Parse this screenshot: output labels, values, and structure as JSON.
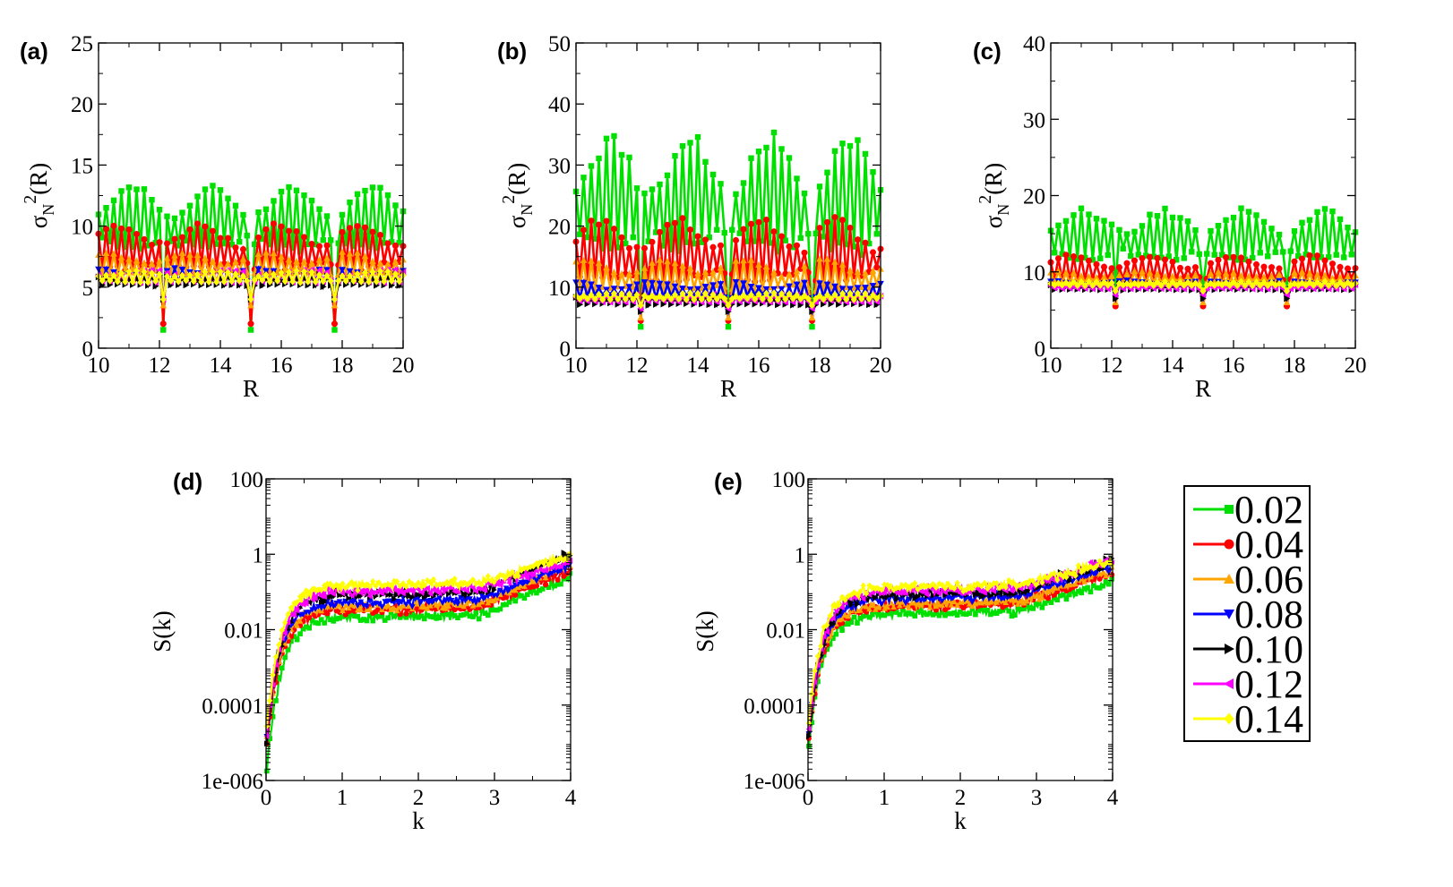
{
  "chart_data": [
    {
      "panel": "(a)",
      "type": "line",
      "xlabel": "R",
      "ylabel_base": "σ",
      "ylabel_sub": "N",
      "ylabel_sup": "2",
      "ylabel_tail": "(R)",
      "xlim": [
        10,
        20
      ],
      "ylim": [
        0,
        25
      ],
      "xticks": [
        "10",
        "12",
        "14",
        "16",
        "18",
        "20"
      ],
      "yticks": [
        "0",
        "5",
        "10",
        "15",
        "20",
        "25"
      ],
      "series_levels": [
        {
          "name": "0.02",
          "mean": 9.2,
          "amp": 4.0,
          "min": 1.5,
          "max": 14.0,
          "dip": 7.5
        },
        {
          "name": "0.04",
          "mean": 7.2,
          "amp": 2.9,
          "min": 2.0,
          "max": 10.2,
          "dip": 5.0
        },
        {
          "name": "0.06",
          "mean": 6.4,
          "amp": 1.4,
          "min": 3.5,
          "max": 8.0,
          "dip": 2.5
        },
        {
          "name": "0.08",
          "mean": 5.6,
          "amp": 0.9,
          "min": 4.0,
          "max": 6.6,
          "dip": 1.6
        },
        {
          "name": "0.10",
          "mean": 5.3,
          "amp": 0.7,
          "min": 4.0,
          "max": 6.2,
          "dip": 1.3
        },
        {
          "name": "0.12",
          "mean": 5.6,
          "amp": 0.8,
          "min": 4.0,
          "max": 6.5,
          "dip": 1.3
        },
        {
          "name": "0.14",
          "mean": 5.6,
          "amp": 0.7,
          "min": 4.0,
          "max": 6.4,
          "dip": 1.2
        }
      ]
    },
    {
      "panel": "(b)",
      "type": "line",
      "xlabel": "R",
      "ylabel_base": "σ",
      "ylabel_sub": "N",
      "ylabel_sup": "2",
      "ylabel_tail": "(R)",
      "xlim": [
        10,
        20
      ],
      "ylim": [
        0,
        50
      ],
      "xticks": [
        "10",
        "12",
        "14",
        "16",
        "18",
        "20"
      ],
      "yticks": [
        "0",
        "10",
        "20",
        "30",
        "40",
        "50"
      ],
      "series_levels": [
        {
          "name": "0.02",
          "mean": 20.0,
          "amp": 14.0,
          "min": 3.5,
          "max": 36.0,
          "dip": 6.0
        },
        {
          "name": "0.04",
          "mean": 13.0,
          "amp": 8.0,
          "min": 4.5,
          "max": 22.5,
          "dip": 4.0
        },
        {
          "name": "0.06",
          "mean": 10.5,
          "amp": 4.0,
          "min": 5.0,
          "max": 15.5,
          "dip": 2.0
        },
        {
          "name": "0.08",
          "mean": 8.8,
          "amp": 2.0,
          "min": 6.0,
          "max": 11.5,
          "dip": 1.5
        },
        {
          "name": "0.10",
          "mean": 7.4,
          "amp": 1.2,
          "min": 6.0,
          "max": 9.0,
          "dip": 0.8
        },
        {
          "name": "0.12",
          "mean": 7.8,
          "amp": 1.0,
          "min": 6.5,
          "max": 9.5,
          "dip": 0.6
        },
        {
          "name": "0.14",
          "mean": 8.2,
          "amp": 0.8,
          "min": 7.0,
          "max": 9.5,
          "dip": 0.5
        }
      ]
    },
    {
      "panel": "(c)",
      "type": "line",
      "xlabel": "R",
      "ylabel_base": "σ",
      "ylabel_sub": "N",
      "ylabel_sup": "2",
      "ylabel_tail": "(R)",
      "xlim": [
        10,
        20
      ],
      "ylim": [
        0,
        40
      ],
      "xticks": [
        "10",
        "12",
        "14",
        "16",
        "18",
        "20"
      ],
      "yticks": [
        "0",
        "10",
        "20",
        "30",
        "40"
      ],
      "series_levels": [
        {
          "name": "0.02",
          "mean": 13.0,
          "amp": 5.0,
          "min": 8.0,
          "max": 20.3,
          "dip": 3.0
        },
        {
          "name": "0.04",
          "mean": 9.5,
          "amp": 2.5,
          "min": 5.5,
          "max": 14.0,
          "dip": 2.5
        },
        {
          "name": "0.06",
          "mean": 8.8,
          "amp": 1.2,
          "min": 6.0,
          "max": 11.0,
          "dip": 1.0
        },
        {
          "name": "0.08",
          "mean": 8.0,
          "amp": 0.8,
          "min": 6.5,
          "max": 9.5,
          "dip": 0.8
        },
        {
          "name": "0.10",
          "mean": 7.8,
          "amp": 0.6,
          "min": 6.5,
          "max": 9.0,
          "dip": 0.6
        },
        {
          "name": "0.12",
          "mean": 7.9,
          "amp": 0.5,
          "min": 7.0,
          "max": 9.0,
          "dip": 0.4
        },
        {
          "name": "0.14",
          "mean": 8.3,
          "amp": 0.4,
          "min": 7.5,
          "max": 9.2,
          "dip": 0.3
        }
      ]
    },
    {
      "panel": "(d)",
      "type": "line",
      "yscale": "log",
      "xlabel": "k",
      "ylabel": "S(k)",
      "xlim": [
        0,
        4
      ],
      "ylim_exp": [
        -6,
        2
      ],
      "xticks": [
        "0",
        "1",
        "2",
        "3",
        "4"
      ],
      "yticks": [
        {
          "label": "1e-006",
          "exp": -6
        },
        {
          "label": "0.0001",
          "exp": -4
        },
        {
          "label": "0.01",
          "exp": -2
        },
        {
          "label": "1",
          "exp": 0
        },
        {
          "label": "100",
          "exp": 2
        }
      ],
      "series_levels": [
        {
          "name": "0.02",
          "start_log": -6.0,
          "plateau_log": -1.7,
          "end_log": -0.6
        },
        {
          "name": "0.04",
          "start_log": -5.3,
          "plateau_log": -1.5,
          "end_log": -0.4
        },
        {
          "name": "0.06",
          "start_log": -5.1,
          "plateau_log": -1.4,
          "end_log": -0.2
        },
        {
          "name": "0.08",
          "start_log": -5.0,
          "plateau_log": -1.3,
          "end_log": -0.3
        },
        {
          "name": "0.10",
          "start_log": -5.2,
          "plateau_log": -1.1,
          "end_log": 0.0
        },
        {
          "name": "0.12",
          "start_log": -5.0,
          "plateau_log": -1.0,
          "end_log": -0.2
        },
        {
          "name": "0.14",
          "start_log": -4.8,
          "plateau_log": -0.85,
          "end_log": -0.05
        }
      ]
    },
    {
      "panel": "(e)",
      "type": "line",
      "yscale": "log",
      "xlabel": "k",
      "ylabel": "S(k)",
      "xlim": [
        0,
        4
      ],
      "ylim_exp": [
        -6,
        2
      ],
      "xticks": [
        "0",
        "1",
        "2",
        "3",
        "4"
      ],
      "yticks": [
        {
          "label": "1e-006",
          "exp": -6
        },
        {
          "label": "0.0001",
          "exp": -4
        },
        {
          "label": "0.01",
          "exp": -2
        },
        {
          "label": "1",
          "exp": 0
        },
        {
          "label": "100",
          "exp": 2
        }
      ],
      "series_levels": [
        {
          "name": "0.02",
          "start_log": -5.3,
          "plateau_log": -1.6,
          "end_log": -0.7
        },
        {
          "name": "0.04",
          "start_log": -5.1,
          "plateau_log": -1.4,
          "end_log": -0.5
        },
        {
          "name": "0.06",
          "start_log": -5.0,
          "plateau_log": -1.35,
          "end_log": -0.4
        },
        {
          "name": "0.08",
          "start_log": -5.0,
          "plateau_log": -1.2,
          "end_log": -0.3
        },
        {
          "name": "0.10",
          "start_log": -5.1,
          "plateau_log": -1.1,
          "end_log": -0.15
        },
        {
          "name": "0.12",
          "start_log": -4.9,
          "plateau_log": -1.0,
          "end_log": -0.15
        },
        {
          "name": "0.14",
          "start_log": -4.6,
          "plateau_log": -0.9,
          "end_log": -0.2
        }
      ]
    }
  ],
  "legend": {
    "items": [
      {
        "label": "0.02",
        "color": "#00e000",
        "marker": "square"
      },
      {
        "label": "0.04",
        "color": "#ff0000",
        "marker": "circle"
      },
      {
        "label": "0.06",
        "color": "#ffa500",
        "marker": "triangle-up"
      },
      {
        "label": "0.08",
        "color": "#0000ff",
        "marker": "triangle-down"
      },
      {
        "label": "0.10",
        "color": "#000000",
        "marker": "triangle-right"
      },
      {
        "label": "0.12",
        "color": "#ff00ff",
        "marker": "triangle-left"
      },
      {
        "label": "0.14",
        "color": "#ffff00",
        "marker": "diamond"
      }
    ]
  }
}
